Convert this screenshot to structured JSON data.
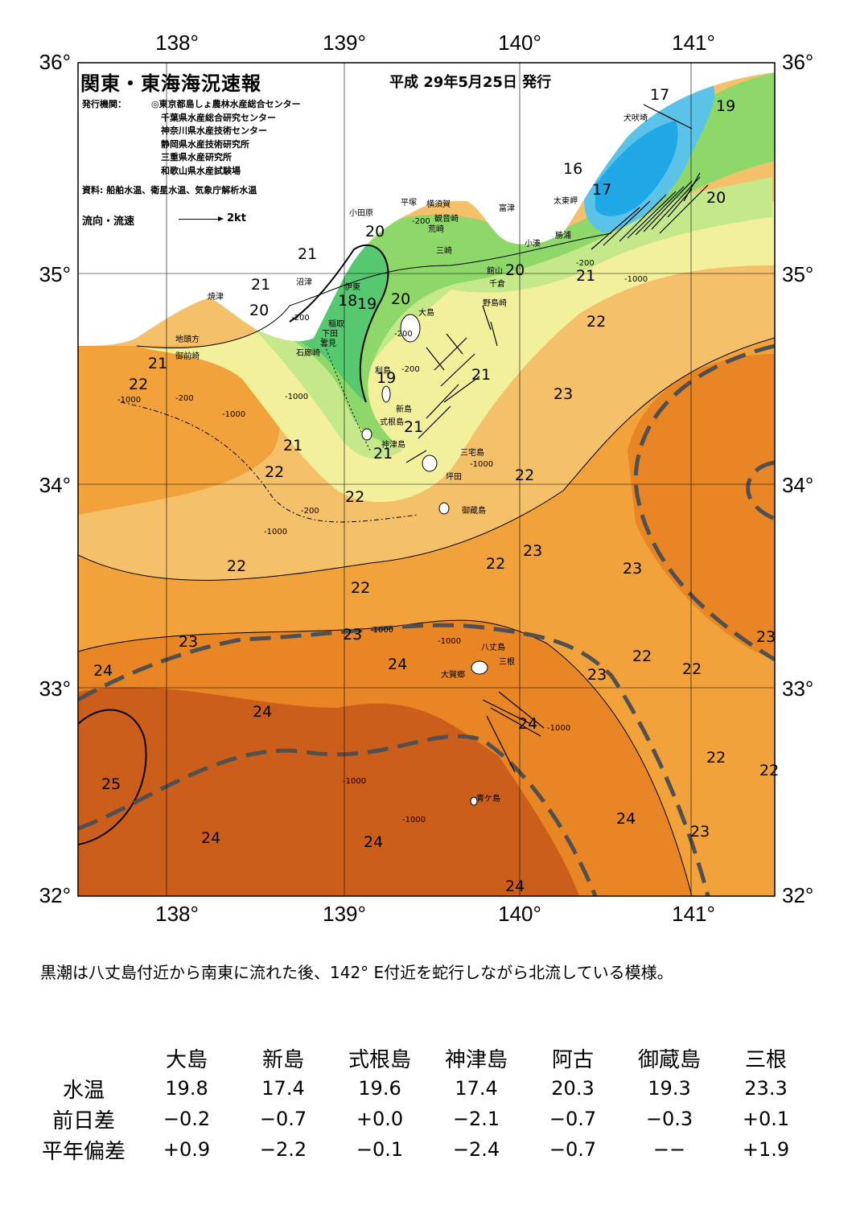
{
  "title": "関東・東海海況速報",
  "date": "平成 29年5月25日 発行",
  "issuers": {
    "label": "発行機関：",
    "list": [
      "◎東京都島しょ農林水産総合センター",
      "千葉県水産総合研究センター",
      "神奈川県水産技術センター",
      "静岡県水産技術研究所",
      "三重県水産研究所",
      "和歌山県水産試験場"
    ]
  },
  "source": "資料: 船舶水温、衛星水温、気象庁解析水温",
  "legend": {
    "label": "流向・流速",
    "unit": "2kt"
  },
  "axes": {
    "lon_top": [
      "138°",
      "139°",
      "140°",
      "141°"
    ],
    "lon_bottom": [
      "138°",
      "139°",
      "140°",
      "141°"
    ],
    "lat_left": [
      "36°",
      "35°",
      "34°",
      "33°",
      "32°"
    ],
    "lat_right": [
      "36°",
      "35°",
      "34°",
      "33°",
      "32°"
    ]
  },
  "map_colors": {
    "sea_14": "#1fa7e6",
    "sea_16": "#5cc3e8",
    "sea_18": "#56c970",
    "sea_19": "#8ed86a",
    "sea_20": "#c5e88a",
    "sea_21": "#f3f09b",
    "sea_22": "#f5c06a",
    "sea_23": "#f2a23a",
    "sea_24": "#e88524",
    "sea_25": "#cc5e1c",
    "land": "#ffffff",
    "kuroshio_axis": "#505050"
  },
  "place_names": {
    "inubozaki": "犬吠埼",
    "taitozaki": "太東岬",
    "katsuura": "勝浦",
    "kominato": "小湊",
    "tateyama": "館山",
    "chikura": "千倉",
    "nojimazaki": "野島崎",
    "futtsu": "富津",
    "kannonzaki": "観音崎",
    "yokosuka": "横須賀",
    "hiratsuka": "平塚",
    "arasaki": "荒崎",
    "misaki": "三崎",
    "odawara": "小田原",
    "ito": "伊東",
    "inatori": "稲取",
    "shimoda": "下田",
    "mera": "雲見",
    "irozaki": "石廊崎",
    "numazu": "沼津",
    "yaizu": "焼津",
    "jitokata": "地頭方",
    "omaezaki": "御前崎",
    "oshima": "大島",
    "toshima": "利島",
    "niijima": "新島",
    "shikinejima": "式根島",
    "kozushima": "神津島",
    "miyakejima": "三宅島",
    "tsubota": "坪田",
    "mikurajima": "御蔵島",
    "hachijojima": "八丈島",
    "mine": "三根",
    "okago": "大賀郷",
    "aogashima": "青ケ島"
  },
  "contour_labels": [
    "16",
    "17",
    "17",
    "18",
    "19",
    "19",
    "19",
    "20",
    "20",
    "20",
    "20",
    "20",
    "21",
    "21",
    "21",
    "21",
    "21",
    "21",
    "21",
    "21",
    "22",
    "22",
    "22",
    "22",
    "22",
    "22",
    "22",
    "22",
    "22",
    "22",
    "22",
    "22",
    "23",
    "23",
    "23",
    "23",
    "23",
    "23",
    "23",
    "23",
    "24",
    "24",
    "24",
    "24",
    "24",
    "24",
    "24",
    "24",
    "25"
  ],
  "depth_labels": [
    "-200",
    "-1000"
  ],
  "summary": "黒潮は八丈島付近から南東に流れた後、142° E付近を蛇行しながら北流している模様。",
  "stats": {
    "stations": [
      "大島",
      "新島",
      "式根島",
      "神津島",
      "阿古",
      "御蔵島",
      "三根"
    ],
    "rows": [
      {
        "label": "水温",
        "values": [
          "19.8",
          "17.4",
          "19.6",
          "17.4",
          "20.3",
          "19.3",
          "23.3"
        ]
      },
      {
        "label": "前日差",
        "values": [
          "−0.2",
          "−0.7",
          "+0.0",
          "−2.1",
          "−0.7",
          "−0.3",
          "+0.1"
        ]
      },
      {
        "label": "平年偏差",
        "values": [
          "+0.9",
          "−2.2",
          "−0.1",
          "−2.4",
          "−0.7",
          "−−",
          "+1.9"
        ]
      }
    ]
  }
}
